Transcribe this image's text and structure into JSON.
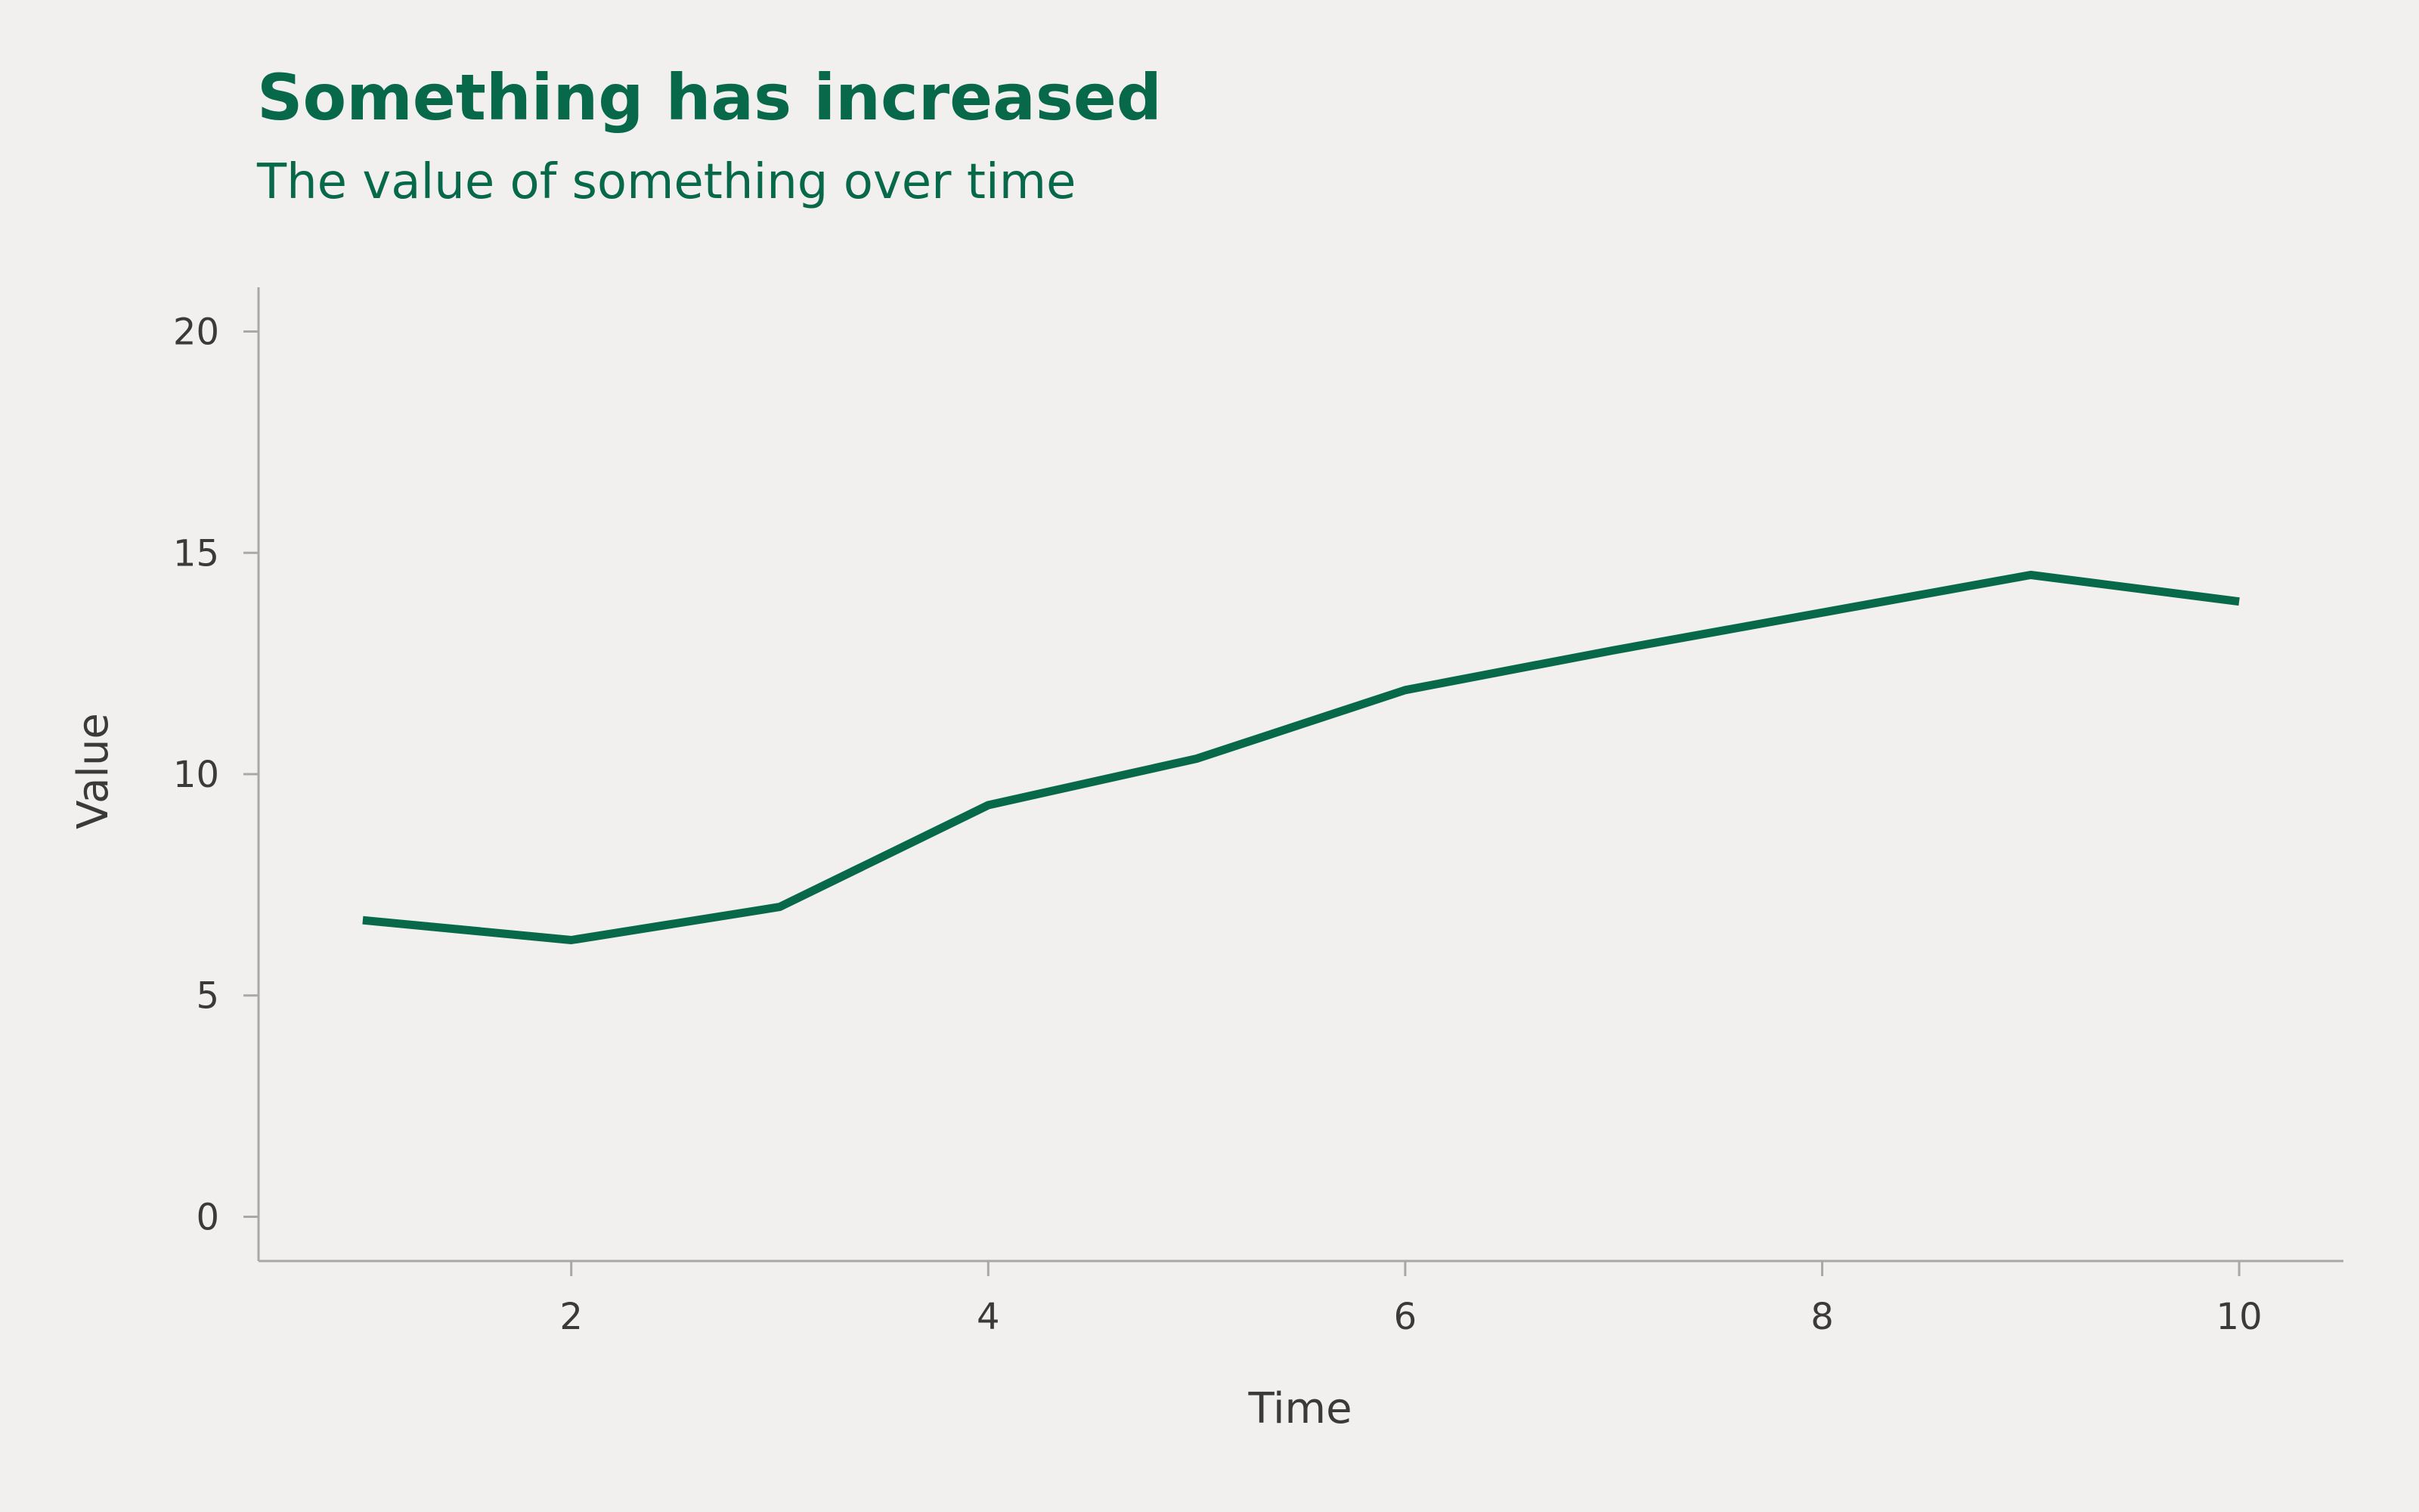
{
  "chart_data": {
    "type": "line",
    "title": "Something has increased",
    "subtitle": "The value of something over time",
    "xlabel": "Time",
    "ylabel": "Value",
    "xlim": [
      0.5,
      10.5
    ],
    "ylim": [
      -1,
      21
    ],
    "xticks": [
      2,
      4,
      6,
      8,
      10
    ],
    "yticks": [
      0,
      5,
      10,
      15,
      20
    ],
    "grid": false,
    "series": [
      {
        "x": [
          1,
          2,
          3,
          4,
          5,
          6,
          7,
          8,
          9,
          10
        ],
        "values": [
          6.7,
          6.25,
          7.0,
          9.3,
          10.35,
          11.9,
          12.8,
          13.65,
          14.5,
          13.9
        ]
      }
    ]
  },
  "colors": {
    "line": "#07694a",
    "title": "#07694a",
    "axis": "#a8a8a8",
    "background": "#f1f0ee"
  }
}
